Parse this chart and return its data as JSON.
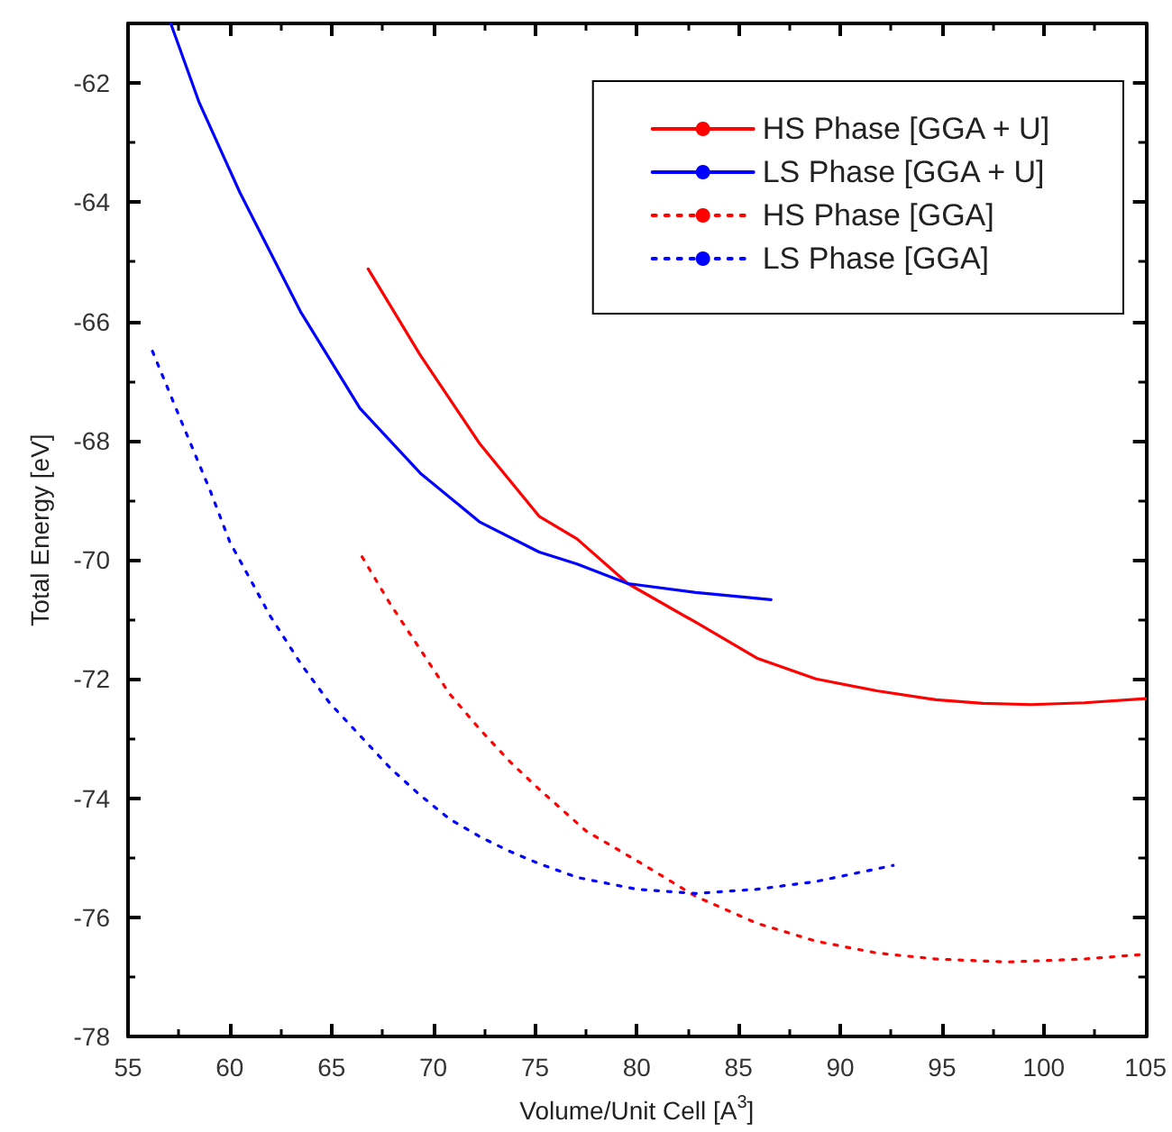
{
  "chart_data": {
    "type": "line",
    "xlabel": "Volume/Unit Cell [A$^{3}$]",
    "ylabel": "Total Energy [eV]",
    "xlim": [
      55,
      105
    ],
    "xticks": [
      55,
      60,
      65,
      70,
      75,
      80,
      85,
      90,
      95,
      100,
      105
    ],
    "ylim": [
      -78,
      -61
    ],
    "yticks": [
      -78,
      -76,
      -74,
      -72,
      -70,
      -68,
      -66,
      -64,
      -62
    ],
    "grid": false,
    "legend": "top right",
    "marker": "none",
    "series": [
      {
        "name": "HS Phase [GGA + U]",
        "color": "#ff0000",
        "line_style": "solid",
        "x": [
          66.8,
          69.35,
          72.3,
          75.2,
          77.06,
          79.56,
          82.9,
          85.9,
          88.8,
          91.8,
          94.7,
          97,
          99.4,
          102,
          105
        ],
        "values": [
          -65.12,
          -66.56,
          -68.06,
          -69.27,
          -69.65,
          -70.4,
          -71.05,
          -71.65,
          -72.0,
          -72.2,
          -72.35,
          -72.41,
          -72.43,
          -72.4,
          -72.33
        ]
      },
      {
        "name": "LS Phase [GGA + U]",
        "color": "#0000ff",
        "line_style": "solid",
        "x": [
          57.1,
          58.5,
          60.5,
          63.5,
          66.4,
          69.4,
          72.3,
          75.2,
          77.06,
          79.56,
          82.9,
          86.6
        ],
        "values": [
          -61.0,
          -62.33,
          -63.84,
          -65.85,
          -67.46,
          -68.56,
          -69.37,
          -69.87,
          -70.07,
          -70.4,
          -70.55,
          -70.67
        ]
      },
      {
        "name": "HS Phase [GGA]",
        "color": "#ff0000",
        "line_style": "dotted",
        "x": [
          66.5,
          67.9,
          69.35,
          70.8,
          72.3,
          73.8,
          75.2,
          77.5,
          80,
          82.9,
          85.9,
          88.8,
          91.8,
          94.7,
          98.2,
          102,
          105
        ],
        "values": [
          -69.95,
          -70.75,
          -71.5,
          -72.25,
          -72.85,
          -73.4,
          -73.85,
          -74.55,
          -75.05,
          -75.65,
          -76.1,
          -76.4,
          -76.6,
          -76.7,
          -76.75,
          -76.7,
          -76.62
        ]
      },
      {
        "name": "LS Phase [GGA]",
        "color": "#0000ff",
        "line_style": "dotted",
        "x": [
          56.2,
          57.6,
          59.06,
          60,
          62,
          63.5,
          64.9,
          66.4,
          67.9,
          69.35,
          70.8,
          72.3,
          73.8,
          75.2,
          77.06,
          80,
          82.9,
          85.9,
          88.8,
          92.6
        ],
        "values": [
          -66.5,
          -67.66,
          -68.86,
          -69.7,
          -70.95,
          -71.75,
          -72.4,
          -72.95,
          -73.5,
          -73.95,
          -74.35,
          -74.65,
          -74.9,
          -75.1,
          -75.33,
          -75.53,
          -75.6,
          -75.53,
          -75.4,
          -75.13
        ]
      }
    ]
  }
}
